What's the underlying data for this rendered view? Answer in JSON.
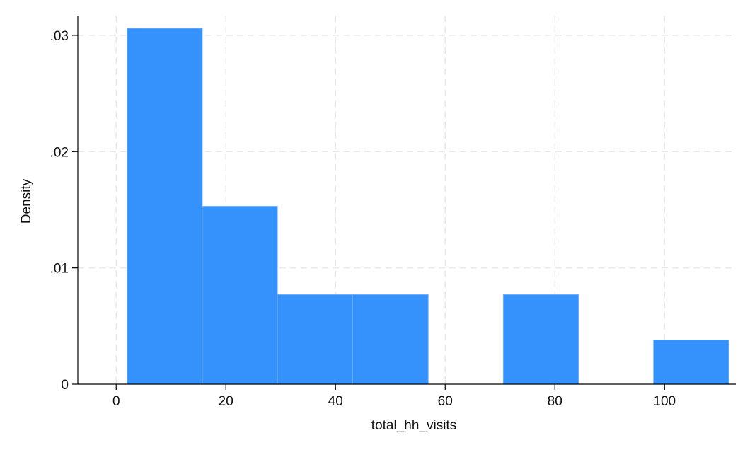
{
  "chart_data": {
    "type": "bar",
    "subtype": "histogram",
    "title": "",
    "xlabel": "total_hh_visits",
    "ylabel": "Density",
    "xlim": [
      -7,
      113
    ],
    "ylim": [
      0,
      0.0317
    ],
    "x_ticks": [
      {
        "value": 0,
        "label": "0"
      },
      {
        "value": 20,
        "label": "20"
      },
      {
        "value": 40,
        "label": "40"
      },
      {
        "value": 60,
        "label": "60"
      },
      {
        "value": 80,
        "label": "80"
      },
      {
        "value": 100,
        "label": "100"
      }
    ],
    "y_ticks": [
      {
        "value": 0,
        "label": "0"
      },
      {
        "value": 0.01,
        "label": ".01"
      },
      {
        "value": 0.02,
        "label": ".02"
      },
      {
        "value": 0.03,
        "label": ".03"
      }
    ],
    "bins": [
      {
        "start": 2.0,
        "end": 15.7,
        "density": 0.0306
      },
      {
        "start": 15.7,
        "end": 29.4,
        "density": 0.0153
      },
      {
        "start": 29.4,
        "end": 43.1,
        "density": 0.0077
      },
      {
        "start": 43.1,
        "end": 56.9,
        "density": 0.0077
      },
      {
        "start": 56.9,
        "end": 70.6,
        "density": 0
      },
      {
        "start": 70.6,
        "end": 84.3,
        "density": 0.0077
      },
      {
        "start": 84.3,
        "end": 98.0,
        "density": 0
      },
      {
        "start": 98.0,
        "end": 111.7,
        "density": 0.0038
      }
    ],
    "grid": true,
    "legend": "none",
    "colors": {
      "bar_fill": "#3592fc",
      "bar_edge": "#6eb1fd",
      "grid": "#e9e9e9",
      "axis": "#000000"
    }
  }
}
